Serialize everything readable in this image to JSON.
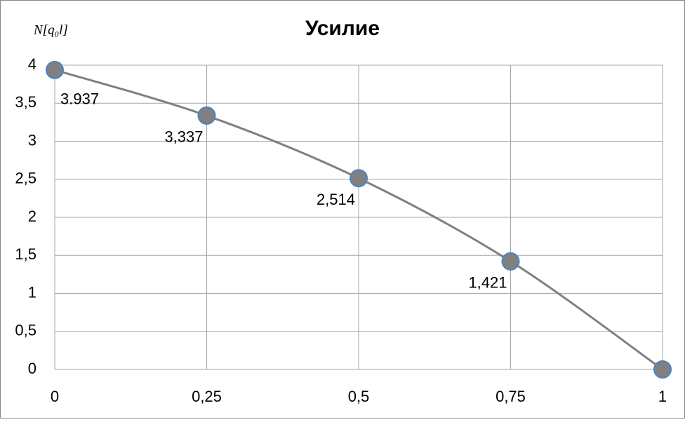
{
  "chart_data": {
    "type": "line",
    "title": "Усилие",
    "y_label": "N[q₀l]",
    "x": [
      0,
      0.25,
      0.5,
      0.75,
      1
    ],
    "values": [
      3.937,
      3.337,
      2.514,
      1.421,
      0
    ],
    "value_labels": [
      "3.937",
      "3,337",
      "2,514",
      "1,421",
      null
    ],
    "color": "#808080",
    "marker_edge_color": "#4f81bd",
    "xlim": [
      0,
      1
    ],
    "xticks": [
      0,
      {
        "value": 0.25,
        "label": "0,25"
      },
      {
        "value": 0.5,
        "label": "0,5"
      },
      {
        "value": 0.75,
        "label": "0,75"
      },
      1
    ],
    "ylim": [
      0,
      4
    ],
    "yticks": [
      0,
      {
        "value": 0.5,
        "label": "0,5"
      },
      1,
      {
        "value": 1.5,
        "label": "1,5"
      },
      2,
      {
        "value": 2.5,
        "label": "2,5"
      },
      3,
      {
        "value": 3.5,
        "label": "3,5"
      },
      4
    ],
    "grid": true
  }
}
